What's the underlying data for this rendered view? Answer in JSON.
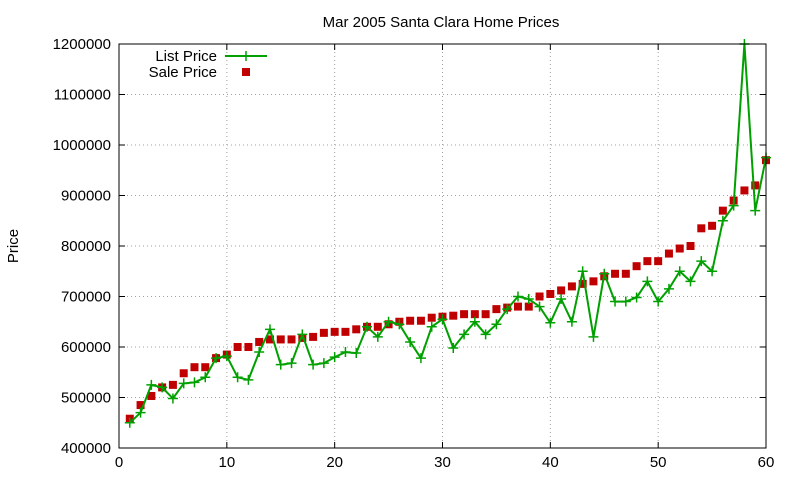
{
  "chart_data": {
    "type": "line",
    "title": "Mar 2005 Santa Clara Home Prices",
    "xlabel": "",
    "ylabel": "Price",
    "xlim": [
      0,
      60
    ],
    "ylim": [
      400000,
      1200000
    ],
    "xticks": [
      0,
      10,
      20,
      30,
      40,
      50,
      60
    ],
    "yticks": [
      400000,
      500000,
      600000,
      700000,
      800000,
      900000,
      1000000,
      1100000,
      1200000
    ],
    "grid": true,
    "legend_position": "top-left",
    "series": [
      {
        "name": "List Price",
        "style": "linespoints",
        "marker": "plus",
        "color": "#00a000",
        "x": [
          1,
          2,
          3,
          4,
          5,
          6,
          7,
          8,
          9,
          10,
          11,
          12,
          13,
          14,
          15,
          16,
          17,
          18,
          19,
          20,
          21,
          22,
          23,
          24,
          25,
          26,
          27,
          28,
          29,
          30,
          31,
          32,
          33,
          34,
          35,
          36,
          37,
          38,
          39,
          40,
          41,
          42,
          43,
          44,
          45,
          46,
          47,
          48,
          49,
          50,
          51,
          52,
          53,
          54,
          55,
          56,
          57,
          58,
          59,
          60
        ],
        "y": [
          450000,
          470000,
          525000,
          520000,
          498000,
          528000,
          530000,
          540000,
          578000,
          582000,
          540000,
          535000,
          590000,
          635000,
          565000,
          568000,
          625000,
          565000,
          568000,
          580000,
          590000,
          588000,
          640000,
          620000,
          650000,
          645000,
          610000,
          578000,
          640000,
          655000,
          598000,
          625000,
          650000,
          625000,
          645000,
          675000,
          700000,
          695000,
          680000,
          648000,
          695000,
          650000,
          750000,
          620000,
          745000,
          690000,
          690000,
          698000,
          730000,
          690000,
          715000,
          750000,
          730000,
          770000,
          750000,
          850000,
          880000,
          1200000,
          870000,
          975000
        ]
      },
      {
        "name": "Sale Price",
        "style": "points",
        "marker": "square",
        "color": "#c00000",
        "x": [
          1,
          2,
          3,
          4,
          5,
          6,
          7,
          8,
          9,
          10,
          11,
          12,
          13,
          14,
          15,
          16,
          17,
          18,
          19,
          20,
          21,
          22,
          23,
          24,
          25,
          26,
          27,
          28,
          29,
          30,
          31,
          32,
          33,
          34,
          35,
          36,
          37,
          38,
          39,
          40,
          41,
          42,
          43,
          44,
          45,
          46,
          47,
          48,
          49,
          50,
          51,
          52,
          53,
          54,
          55,
          56,
          57,
          58,
          59,
          60
        ],
        "y": [
          458000,
          485000,
          503000,
          520000,
          525000,
          548000,
          560000,
          560000,
          578000,
          585000,
          600000,
          600000,
          610000,
          615000,
          615000,
          615000,
          618000,
          620000,
          628000,
          630000,
          630000,
          635000,
          640000,
          640000,
          645000,
          650000,
          652000,
          652000,
          658000,
          660000,
          662000,
          665000,
          665000,
          665000,
          675000,
          678000,
          680000,
          680000,
          700000,
          705000,
          712000,
          720000,
          725000,
          730000,
          740000,
          745000,
          745000,
          760000,
          770000,
          770000,
          785000,
          795000,
          800000,
          835000,
          840000,
          870000,
          890000,
          910000,
          920000,
          970000
        ]
      }
    ]
  }
}
